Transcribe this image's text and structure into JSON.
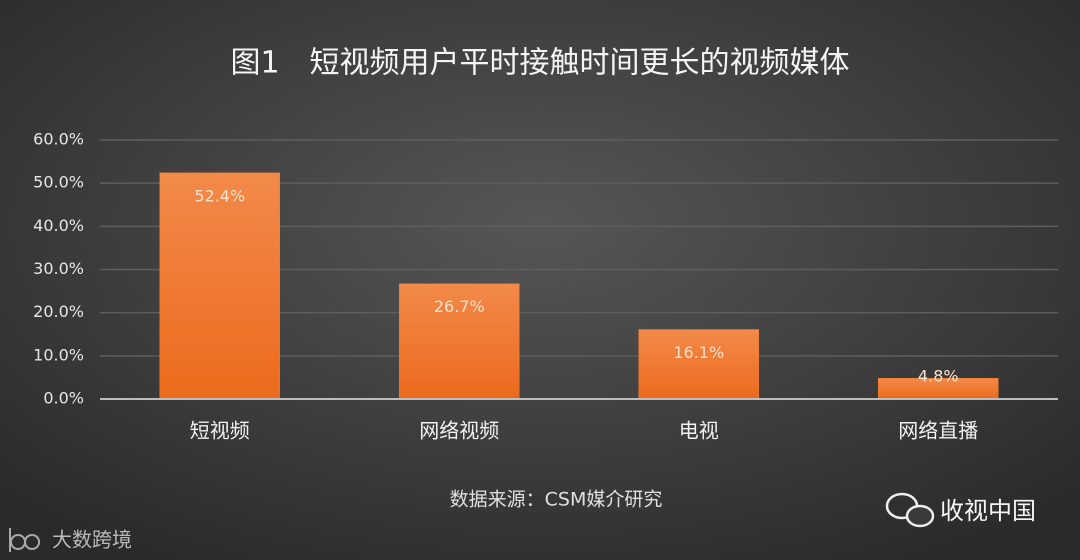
{
  "chart_data": {
    "type": "bar",
    "title": "图1　短视频用户平时接触时间更长的视频媒体",
    "categories": [
      "短视频",
      "网络视频",
      "电视",
      "网络直播"
    ],
    "values": [
      52.4,
      26.7,
      16.1,
      4.8
    ],
    "value_labels": [
      "52.4%",
      "26.7%",
      "16.1%",
      "4.8%"
    ],
    "color": "#f07a2e",
    "ylim": [
      0,
      60
    ],
    "yticks": [
      {
        "value": 0,
        "label": "0.0%"
      },
      {
        "value": 10,
        "label": "10.0%"
      },
      {
        "value": 20,
        "label": "20.0%"
      },
      {
        "value": 30,
        "label": "30.0%"
      },
      {
        "value": 40,
        "label": "40.0%"
      },
      {
        "value": 50,
        "label": "50.0%"
      },
      {
        "value": 60,
        "label": "60.0%"
      }
    ],
    "grid": true,
    "source": "数据来源：CSM媒介研究",
    "watermarks": [
      "收视中国",
      "大数跨境"
    ]
  }
}
